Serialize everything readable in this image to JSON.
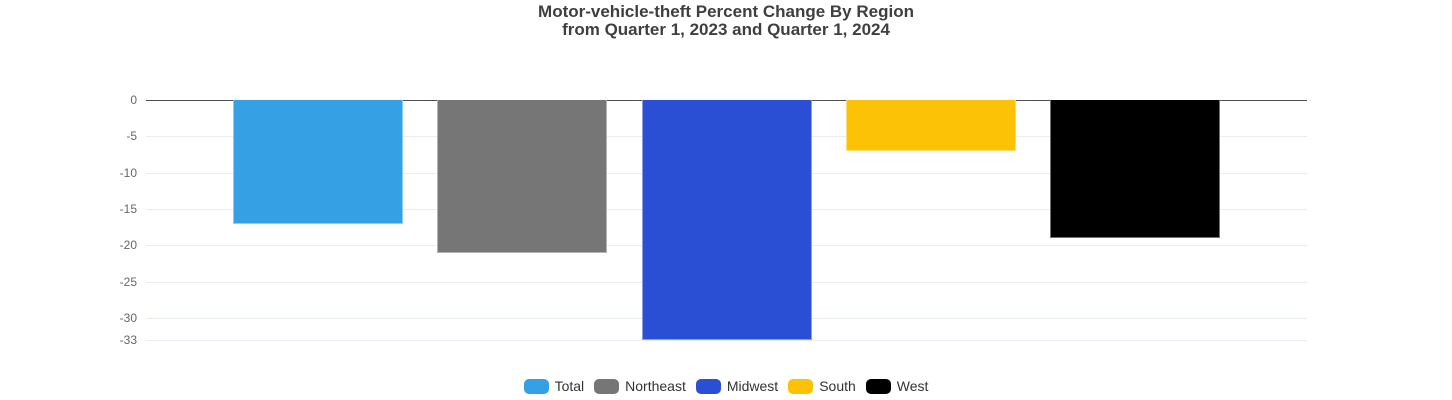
{
  "title": {
    "line1": "Motor-vehicle-theft Percent Change By Region",
    "line2": "from Quarter 1, 2023 and Quarter 1, 2024"
  },
  "chart_data": {
    "type": "bar",
    "title": "Motor-vehicle-theft Percent Change By Region from Quarter 1, 2023 and Quarter 1, 2024",
    "categories": [
      "Total",
      "Northeast",
      "Midwest",
      "South",
      "West"
    ],
    "values": [
      -17,
      -21,
      -33,
      -7,
      -19
    ],
    "colors": [
      "#36a0e5",
      "#767676",
      "#2a4ed4",
      "#fcc306",
      "#000000"
    ],
    "xlabel": "",
    "ylabel": "",
    "ylim": [
      -33,
      0
    ],
    "yticks": [
      0,
      -5,
      -10,
      -15,
      -20,
      -25,
      -30,
      -33
    ],
    "grid": true,
    "legend_position": "bottom"
  }
}
